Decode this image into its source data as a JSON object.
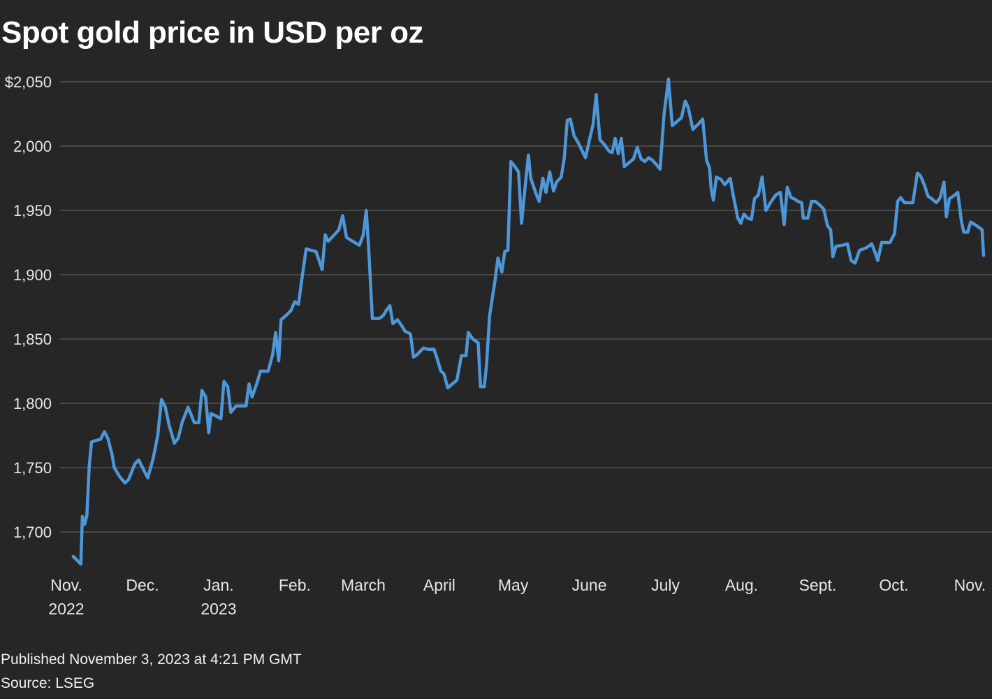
{
  "title": "Spot gold price in USD per oz",
  "footer": {
    "published": "Published November 3, 2023 at 4:21 PM GMT",
    "source": "Source: LSEG"
  },
  "colors": {
    "background": "#262626",
    "line": "#4d96d8",
    "grid": "#5e5e5e"
  },
  "chart_data": {
    "type": "line",
    "title": "Spot gold price in USD per oz",
    "xlabel": "",
    "ylabel": "",
    "ylim": [
      1665,
      2052
    ],
    "xlim": [
      0,
      12.05
    ],
    "grid": true,
    "y_ticks": [
      1700,
      1750,
      1800,
      1850,
      1900,
      1950,
      2000,
      2050
    ],
    "y_tick_labels": [
      "1,700",
      "1,750",
      "1,800",
      "1,850",
      "1,900",
      "1,950",
      "2,000",
      "$2,050"
    ],
    "x_ticks": [
      {
        "pos": 0.0,
        "label": [
          "Nov.",
          "2022"
        ]
      },
      {
        "pos": 1.0,
        "label": [
          "Dec."
        ]
      },
      {
        "pos": 2.0,
        "label": [
          "Jan.",
          "2023"
        ]
      },
      {
        "pos": 3.0,
        "label": [
          "Feb."
        ]
      },
      {
        "pos": 3.9,
        "label": [
          "March"
        ]
      },
      {
        "pos": 4.9,
        "label": [
          "April"
        ]
      },
      {
        "pos": 5.87,
        "label": [
          "May"
        ]
      },
      {
        "pos": 6.87,
        "label": [
          "June"
        ]
      },
      {
        "pos": 7.87,
        "label": [
          "July"
        ]
      },
      {
        "pos": 8.87,
        "label": [
          "Aug."
        ]
      },
      {
        "pos": 9.87,
        "label": [
          "Sept."
        ]
      },
      {
        "pos": 10.87,
        "label": [
          "Oct."
        ]
      },
      {
        "pos": 11.87,
        "label": [
          "Nov."
        ]
      }
    ],
    "series": [
      {
        "name": "Spot gold",
        "points": [
          [
            0.09,
            1681
          ],
          [
            0.14,
            1678
          ],
          [
            0.19,
            1675
          ],
          [
            0.21,
            1712
          ],
          [
            0.24,
            1706
          ],
          [
            0.27,
            1713
          ],
          [
            0.3,
            1751
          ],
          [
            0.33,
            1770
          ],
          [
            0.38,
            1771
          ],
          [
            0.45,
            1772
          ],
          [
            0.5,
            1778
          ],
          [
            0.55,
            1772
          ],
          [
            0.6,
            1760
          ],
          [
            0.63,
            1750
          ],
          [
            0.7,
            1743
          ],
          [
            0.77,
            1738
          ],
          [
            0.82,
            1741
          ],
          [
            0.9,
            1753
          ],
          [
            0.95,
            1756
          ],
          [
            1.0,
            1750
          ],
          [
            1.07,
            1742
          ],
          [
            1.14,
            1757
          ],
          [
            1.2,
            1775
          ],
          [
            1.25,
            1803
          ],
          [
            1.3,
            1797
          ],
          [
            1.35,
            1783
          ],
          [
            1.42,
            1769
          ],
          [
            1.47,
            1773
          ],
          [
            1.52,
            1785
          ],
          [
            1.6,
            1797
          ],
          [
            1.68,
            1785
          ],
          [
            1.74,
            1785
          ],
          [
            1.78,
            1810
          ],
          [
            1.83,
            1805
          ],
          [
            1.87,
            1777
          ],
          [
            1.9,
            1792
          ],
          [
            1.97,
            1790
          ],
          [
            2.03,
            1788
          ],
          [
            2.07,
            1817
          ],
          [
            2.12,
            1813
          ],
          [
            2.16,
            1793
          ],
          [
            2.23,
            1798
          ],
          [
            2.3,
            1798
          ],
          [
            2.36,
            1798
          ],
          [
            2.4,
            1815
          ],
          [
            2.44,
            1805
          ],
          [
            2.5,
            1815
          ],
          [
            2.55,
            1825
          ],
          [
            2.65,
            1825
          ],
          [
            2.71,
            1838
          ],
          [
            2.75,
            1855
          ],
          [
            2.79,
            1833
          ],
          [
            2.82,
            1865
          ],
          [
            2.88,
            1868
          ],
          [
            2.95,
            1872
          ],
          [
            3.0,
            1879
          ],
          [
            3.05,
            1877
          ],
          [
            3.09,
            1895
          ],
          [
            3.15,
            1920
          ],
          [
            3.28,
            1918
          ],
          [
            3.36,
            1904
          ],
          [
            3.4,
            1931
          ],
          [
            3.44,
            1926
          ],
          [
            3.52,
            1931
          ],
          [
            3.58,
            1935
          ],
          [
            3.63,
            1946
          ],
          [
            3.68,
            1929
          ],
          [
            3.76,
            1926
          ],
          [
            3.85,
            1923
          ],
          [
            3.9,
            1931
          ],
          [
            3.94,
            1950
          ],
          [
            3.97,
            1922
          ],
          [
            4.02,
            1866
          ],
          [
            4.11,
            1866
          ],
          [
            4.16,
            1868
          ],
          [
            4.2,
            1872
          ],
          [
            4.25,
            1876
          ],
          [
            4.29,
            1862
          ],
          [
            4.35,
            1865
          ],
          [
            4.41,
            1860
          ],
          [
            4.45,
            1856
          ],
          [
            4.52,
            1854
          ],
          [
            4.56,
            1836
          ],
          [
            4.61,
            1838
          ],
          [
            4.69,
            1843
          ],
          [
            4.75,
            1842
          ],
          [
            4.83,
            1842
          ],
          [
            4.87,
            1835
          ],
          [
            4.92,
            1825
          ],
          [
            4.96,
            1823
          ],
          [
            5.01,
            1812
          ],
          [
            5.07,
            1815
          ],
          [
            5.13,
            1818
          ],
          [
            5.19,
            1837
          ],
          [
            5.25,
            1837
          ],
          [
            5.28,
            1855
          ],
          [
            5.34,
            1850
          ],
          [
            5.41,
            1847
          ],
          [
            5.44,
            1813
          ],
          [
            5.49,
            1813
          ],
          [
            5.52,
            1830
          ],
          [
            5.56,
            1868
          ],
          [
            5.63,
            1895
          ],
          [
            5.67,
            1913
          ],
          [
            5.72,
            1902
          ],
          [
            5.76,
            1918
          ],
          [
            5.8,
            1919
          ],
          [
            5.84,
            1988
          ],
          [
            5.88,
            1985
          ],
          [
            5.94,
            1980
          ],
          [
            5.98,
            1940
          ],
          [
            6.03,
            1970
          ],
          [
            6.07,
            1993
          ],
          [
            6.1,
            1975
          ],
          [
            6.17,
            1963
          ],
          [
            6.21,
            1957
          ],
          [
            6.26,
            1975
          ],
          [
            6.3,
            1964
          ],
          [
            6.35,
            1980
          ],
          [
            6.4,
            1965
          ],
          [
            6.44,
            1972
          ],
          [
            6.5,
            1976
          ],
          [
            6.54,
            1990
          ],
          [
            6.58,
            2020
          ],
          [
            6.62,
            2021
          ],
          [
            6.67,
            2008
          ],
          [
            6.73,
            2002
          ],
          [
            6.77,
            1997
          ],
          [
            6.82,
            1991
          ],
          [
            6.88,
            2007
          ],
          [
            6.92,
            2017
          ],
          [
            6.96,
            2040
          ],
          [
            7.01,
            2005
          ],
          [
            7.07,
            2001
          ],
          [
            7.13,
            1996
          ],
          [
            7.17,
            1995
          ],
          [
            7.21,
            2006
          ],
          [
            7.25,
            1994
          ],
          [
            7.29,
            2006
          ],
          [
            7.33,
            1984
          ],
          [
            7.39,
            1987
          ],
          [
            7.45,
            1990
          ],
          [
            7.5,
            1999
          ],
          [
            7.55,
            1990
          ],
          [
            7.6,
            1988
          ],
          [
            7.65,
            1991
          ],
          [
            7.7,
            1989
          ],
          [
            7.76,
            1985
          ],
          [
            7.8,
            1982
          ],
          [
            7.85,
            2024
          ],
          [
            7.91,
            2052
          ],
          [
            7.96,
            2016
          ],
          [
            8.02,
            2019
          ],
          [
            8.08,
            2022
          ],
          [
            8.13,
            2035
          ],
          [
            8.17,
            2030
          ],
          [
            8.23,
            2013
          ],
          [
            8.3,
            2017
          ],
          [
            8.36,
            2021
          ],
          [
            8.41,
            1989
          ],
          [
            8.45,
            1983
          ],
          [
            8.47,
            1967
          ],
          [
            8.5,
            1958
          ],
          [
            8.54,
            1976
          ],
          [
            8.6,
            1974
          ],
          [
            8.65,
            1970
          ],
          [
            8.72,
            1975
          ],
          [
            8.76,
            1962
          ],
          [
            8.82,
            1944
          ],
          [
            8.86,
            1940
          ],
          [
            8.9,
            1947
          ],
          [
            8.95,
            1944
          ],
          [
            9.0,
            1943
          ],
          [
            9.04,
            1959
          ],
          [
            9.09,
            1962
          ],
          [
            9.14,
            1976
          ],
          [
            9.19,
            1950
          ],
          [
            9.26,
            1957
          ],
          [
            9.32,
            1962
          ],
          [
            9.38,
            1964
          ],
          [
            9.43,
            1939
          ],
          [
            9.47,
            1968
          ],
          [
            9.52,
            1960
          ],
          [
            9.56,
            1959
          ],
          [
            9.61,
            1957
          ],
          [
            9.66,
            1956
          ],
          [
            9.68,
            1944
          ],
          [
            9.74,
            1944
          ],
          [
            9.79,
            1957
          ],
          [
            9.84,
            1957
          ],
          [
            9.9,
            1954
          ],
          [
            9.95,
            1951
          ],
          [
            10.0,
            1938
          ],
          [
            10.04,
            1935
          ],
          [
            10.07,
            1914
          ],
          [
            10.11,
            1922
          ],
          [
            10.2,
            1923
          ],
          [
            10.26,
            1924
          ],
          [
            10.31,
            1911
          ],
          [
            10.36,
            1909
          ],
          [
            10.42,
            1919
          ],
          [
            10.47,
            1920
          ],
          [
            10.51,
            1921
          ],
          [
            10.56,
            1923
          ],
          [
            10.58,
            1924
          ],
          [
            10.62,
            1918
          ],
          [
            10.66,
            1911
          ],
          [
            10.71,
            1925
          ],
          [
            10.76,
            1925
          ],
          [
            10.82,
            1925
          ],
          [
            10.88,
            1932
          ],
          [
            10.92,
            1957
          ],
          [
            10.96,
            1960
          ],
          [
            11.01,
            1956
          ],
          [
            11.07,
            1956
          ],
          [
            11.12,
            1956
          ],
          [
            11.18,
            1979
          ],
          [
            11.22,
            1977
          ],
          [
            11.27,
            1970
          ],
          [
            11.32,
            1961
          ],
          [
            11.37,
            1959
          ],
          [
            11.43,
            1956
          ],
          [
            11.48,
            1960
          ],
          [
            11.53,
            1972
          ],
          [
            11.56,
            1945
          ],
          [
            11.6,
            1959
          ],
          [
            11.65,
            1961
          ],
          [
            11.71,
            1964
          ],
          [
            11.76,
            1941
          ],
          [
            11.79,
            1933
          ],
          [
            11.84,
            1933
          ],
          [
            11.88,
            1941
          ],
          [
            11.96,
            1938
          ],
          [
            12.03,
            1935
          ],
          [
            12.05,
            1915
          ]
        ]
      }
    ]
  }
}
